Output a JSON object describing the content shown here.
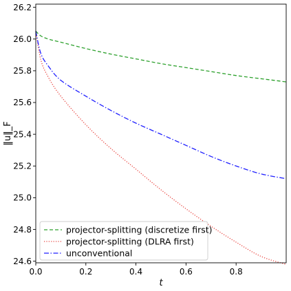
{
  "chart_data": {
    "type": "line",
    "title": "",
    "xlabel": "t",
    "ylabel": "‖u‖_F",
    "xlim": [
      0.0,
      1.0
    ],
    "ylim": [
      24.59,
      26.22
    ],
    "xticks": [
      0.0,
      0.2,
      0.4,
      0.6,
      0.8
    ],
    "xtick_labels": [
      "0.0",
      "0.2",
      "0.4",
      "0.6",
      "0.8"
    ],
    "yticks": [
      24.6,
      24.8,
      25.0,
      25.2,
      25.4,
      25.6,
      25.8,
      26.0,
      26.2
    ],
    "ytick_labels": [
      "24.6",
      "24.8",
      "25.0",
      "25.2",
      "25.4",
      "25.6",
      "25.8",
      "26.0",
      "26.2"
    ],
    "grid": false,
    "legend_position": "lower-left",
    "series": [
      {
        "name": "projector-splitting (discretize first)",
        "color": "#2ca02c",
        "dash": "dashed",
        "x": [
          0.0,
          0.02,
          0.05,
          0.1,
          0.2,
          0.3,
          0.4,
          0.5,
          0.6,
          0.7,
          0.8,
          0.9,
          1.0
        ],
        "values": [
          26.05,
          26.02,
          26.0,
          25.98,
          25.94,
          25.905,
          25.875,
          25.845,
          25.82,
          25.795,
          25.77,
          25.75,
          25.73
        ]
      },
      {
        "name": "projector-splitting (DLRA first)",
        "color": "#e8413c",
        "dash": "dotted",
        "x": [
          0.0,
          0.02,
          0.05,
          0.1,
          0.2,
          0.3,
          0.4,
          0.5,
          0.6,
          0.7,
          0.8,
          0.9,
          1.0
        ],
        "values": [
          26.05,
          25.87,
          25.76,
          25.64,
          25.46,
          25.31,
          25.18,
          25.05,
          24.93,
          24.82,
          24.72,
          24.63,
          24.58
        ]
      },
      {
        "name": "unconventional",
        "color": "#1f1fff",
        "dash": "dashdot",
        "x": [
          0.0,
          0.02,
          0.05,
          0.1,
          0.2,
          0.3,
          0.4,
          0.5,
          0.6,
          0.7,
          0.8,
          0.9,
          1.0
        ],
        "values": [
          26.05,
          25.91,
          25.83,
          25.74,
          25.64,
          25.55,
          25.47,
          25.4,
          25.33,
          25.26,
          25.2,
          25.15,
          25.12
        ]
      }
    ]
  }
}
